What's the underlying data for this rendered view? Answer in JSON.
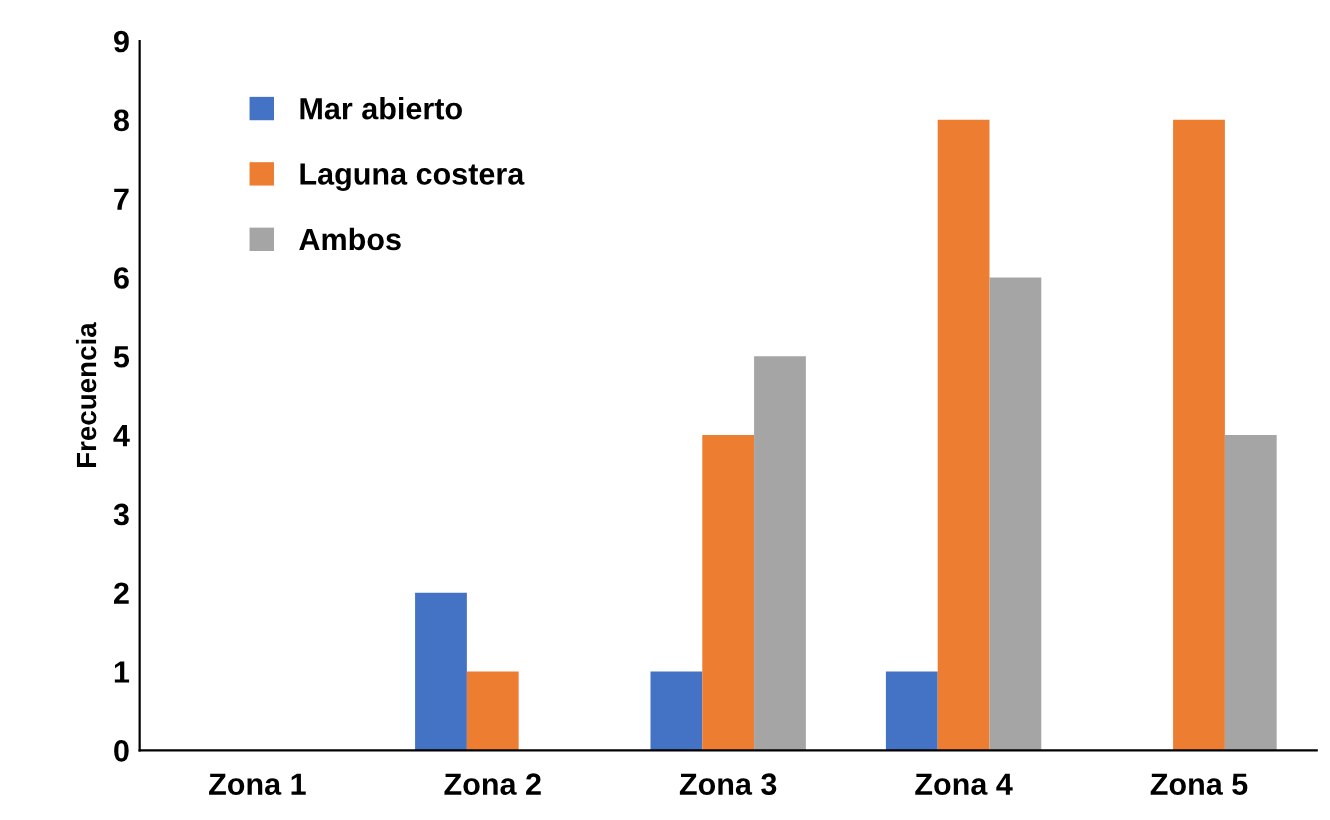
{
  "chart_data": {
    "type": "bar",
    "ylabel": "Frecuencia",
    "categories": [
      "Zona 1",
      "Zona 2",
      "Zona 3",
      "Zona 4",
      "Zona 5"
    ],
    "series": [
      {
        "name": "Mar abierto",
        "color": "#4472c4",
        "values": [
          0,
          2,
          1,
          1,
          0
        ]
      },
      {
        "name": "Laguna costera",
        "color": "#ed7d31",
        "values": [
          0,
          1,
          4,
          8,
          8
        ]
      },
      {
        "name": "Ambos",
        "color": "#a5a5a5",
        "values": [
          0,
          0,
          5,
          6,
          4
        ]
      }
    ],
    "ylim": [
      0,
      9
    ],
    "yticks": [
      0,
      1,
      2,
      3,
      4,
      5,
      6,
      7,
      8,
      9
    ],
    "grid": false,
    "legend": "top left"
  }
}
